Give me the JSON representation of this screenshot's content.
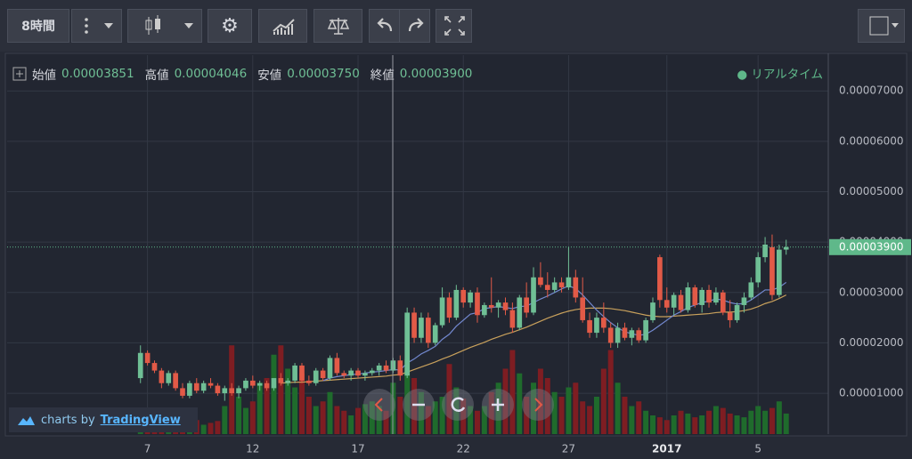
{
  "toolbar": {
    "interval": "8時間"
  },
  "legend": {
    "items": [
      {
        "label": "始値",
        "value": "0.00003851"
      },
      {
        "label": "高値",
        "value": "0.00004046"
      },
      {
        "label": "安値",
        "value": "0.00003750"
      },
      {
        "label": "終値",
        "value": "0.00003900"
      }
    ],
    "status": "リアルタイム"
  },
  "watermark": {
    "prefix": "charts by",
    "brand": "TradingView"
  },
  "chart_data": {
    "type": "candlestick",
    "up_color": "#6fbf95",
    "down_color": "#e25a47",
    "volume_up_color": "#1f6b2c",
    "volume_down_color": "#7e1d22",
    "ylim": [
      1.89e-06,
      7.71e-05
    ],
    "yticks": [
      {
        "value": 1e-05,
        "label": "0.00001000"
      },
      {
        "value": 2e-05,
        "label": "0.00002000"
      },
      {
        "value": 3e-05,
        "label": "0.00003000"
      },
      {
        "value": 4e-05,
        "label": "0.00004000"
      },
      {
        "value": 5e-05,
        "label": "0.00005000"
      },
      {
        "value": 6e-05,
        "label": "0.00006000"
      },
      {
        "value": 7e-05,
        "label": "0.00007000"
      }
    ],
    "xlim": [
      -19,
      98
    ],
    "xticks": [
      {
        "value": 1,
        "label": "7"
      },
      {
        "value": 16,
        "label": "12"
      },
      {
        "value": 31,
        "label": "17"
      },
      {
        "value": 46,
        "label": "22"
      },
      {
        "value": 61,
        "label": "27"
      },
      {
        "value": 75,
        "label": "2017"
      },
      {
        "value": 88,
        "label": "5"
      }
    ],
    "grid": true,
    "last_price": {
      "value": 3.9e-05,
      "label": "0.00003900",
      "color": "#5fb88a"
    },
    "open": [
      1.3e-05,
      1.8e-05,
      1.6e-05,
      1.45e-05,
      1.2e-05,
      1.4e-05,
      1.1e-05,
      9.5e-06,
      1.2e-05,
      1.05e-05,
      1.2e-05,
      1.15e-05,
      1e-05,
      1.1e-05,
      1e-05,
      1.1e-05,
      1.25e-05,
      1.15e-05,
      1.2e-05,
      1.1e-05,
      1.3e-05,
      1.2e-05,
      1.25e-05,
      1.55e-05,
      1.25e-05,
      1.2e-05,
      1.45e-05,
      1.3e-05,
      1.7e-05,
      1.4e-05,
      1.35e-05,
      1.45e-05,
      1.35e-05,
      1.4e-05,
      1.45e-05,
      1.55e-05,
      1.45e-05,
      1.65e-05,
      1.35e-05,
      2.6e-05,
      2.1e-05,
      2.5e-05,
      2e-05,
      2.35e-05,
      2.9e-05,
      2.5e-05,
      3.05e-05,
      2.8e-05,
      3e-05,
      2.55e-05,
      2.75e-05,
      2.7e-05,
      2.8e-05,
      2.65e-05,
      2.3e-05,
      2.9e-05,
      2.6e-05,
      3.3e-05,
      3.15e-05,
      3.05e-05,
      3.2e-05,
      3.1e-05,
      3.3e-05,
      2.9e-05,
      2.45e-05,
      2.2e-05,
      2.5e-05,
      2.3e-05,
      2e-05,
      2.3e-05,
      2.1e-05,
      2.25e-05,
      2.05e-05,
      2.45e-05,
      3.7e-05,
      2.85e-05,
      2.7e-05,
      2.95e-05,
      2.65e-05,
      3.1e-05,
      2.75e-05,
      3.05e-05,
      2.8e-05,
      3e-05,
      2.6e-05,
      2.45e-05,
      2.75e-05,
      2.9e-05,
      3.2e-05,
      3.7e-05,
      3.9e-05,
      2.95e-05,
      3.851e-05
    ],
    "high": [
      1.95e-05,
      1.85e-05,
      1.65e-05,
      1.5e-05,
      1.45e-05,
      1.45e-05,
      1.2e-05,
      1.25e-05,
      1.3e-05,
      1.25e-05,
      1.3e-05,
      1.2e-05,
      1.15e-05,
      1.2e-05,
      1.15e-05,
      1.3e-05,
      1.35e-05,
      1.25e-05,
      1.25e-05,
      1.3e-05,
      1.4e-05,
      1.3e-05,
      1.6e-05,
      1.6e-05,
      1.35e-05,
      1.5e-05,
      1.5e-05,
      1.75e-05,
      1.8e-05,
      1.45e-05,
      1.5e-05,
      1.5e-05,
      1.45e-05,
      1.5e-05,
      1.6e-05,
      1.65e-05,
      1.7e-05,
      1.75e-05,
      2.7e-05,
      2.7e-05,
      2.6e-05,
      2.6e-05,
      2.4e-05,
      3.1e-05,
      3e-05,
      3.15e-05,
      3.1e-05,
      3.05e-05,
      3.1e-05,
      2.8e-05,
      3.3e-05,
      2.85e-05,
      2.9e-05,
      2.8e-05,
      2.95e-05,
      3.2e-05,
      3.5e-05,
      3.6e-05,
      3.4e-05,
      3.3e-05,
      3.3e-05,
      3.9e-05,
      3.45e-05,
      3.3e-05,
      2.6e-05,
      2.6e-05,
      2.8e-05,
      2.4e-05,
      2.4e-05,
      2.4e-05,
      2.3e-05,
      2.3e-05,
      2.5e-05,
      2.9e-05,
      3.75e-05,
      3.1e-05,
      3e-05,
      3.05e-05,
      3.2e-05,
      3.15e-05,
      3.1e-05,
      3.15e-05,
      3.1e-05,
      3.05e-05,
      2.85e-05,
      2.8e-05,
      3e-05,
      3.3e-05,
      3.8e-05,
      4.1e-05,
      4.15e-05,
      3.95e-05,
      4.046e-05
    ],
    "low": [
      1.2e-05,
      1.55e-05,
      1.4e-05,
      1.1e-05,
      1.15e-05,
      1.05e-05,
      9e-06,
      9e-06,
      1e-05,
      1e-05,
      1.1e-05,
      9.5e-06,
      8.5e-06,
      9.5e-06,
      9e-06,
      1.05e-05,
      1.1e-05,
      1.05e-05,
      1.05e-05,
      1.05e-05,
      1.15e-05,
      1.15e-05,
      1.2e-05,
      1.2e-05,
      1.15e-05,
      1.15e-05,
      1.25e-05,
      1.25e-05,
      1.35e-05,
      1.3e-05,
      1.25e-05,
      1.3e-05,
      1.25e-05,
      1.35e-05,
      1.35e-05,
      1.4e-05,
      1.4e-05,
      1.25e-05,
      1.3e-05,
      2e-05,
      2e-05,
      1.9e-05,
      1.95e-05,
      2.3e-05,
      2.4e-05,
      2.45e-05,
      2.7e-05,
      2.7e-05,
      2.4e-05,
      2.5e-05,
      2.6e-05,
      2.5e-05,
      2.55e-05,
      2.2e-05,
      2.25e-05,
      2.5e-05,
      2.55e-05,
      3.1e-05,
      2.9e-05,
      3e-05,
      3e-05,
      3.05e-05,
      2.8e-05,
      2.4e-05,
      2.1e-05,
      2.1e-05,
      2.2e-05,
      1.9e-05,
      1.9e-05,
      2.05e-05,
      1.95e-05,
      2e-05,
      2e-05,
      2.4e-05,
      2.7e-05,
      2.6e-05,
      2.55e-05,
      2.6e-05,
      2.6e-05,
      2.7e-05,
      2.6e-05,
      2.7e-05,
      2.75e-05,
      2.55e-05,
      2.3e-05,
      2.4e-05,
      2.6e-05,
      2.85e-05,
      3.1e-05,
      3.6e-05,
      2.85e-05,
      2.9e-05,
      3.75e-05
    ],
    "close": [
      1.8e-05,
      1.6e-05,
      1.45e-05,
      1.2e-05,
      1.4e-05,
      1.1e-05,
      9.5e-06,
      1.2e-05,
      1.05e-05,
      1.2e-05,
      1.15e-05,
      1e-05,
      1.1e-05,
      1e-05,
      1.1e-05,
      1.25e-05,
      1.15e-05,
      1.2e-05,
      1.1e-05,
      1.3e-05,
      1.2e-05,
      1.25e-05,
      1.55e-05,
      1.25e-05,
      1.2e-05,
      1.45e-05,
      1.3e-05,
      1.7e-05,
      1.4e-05,
      1.35e-05,
      1.45e-05,
      1.35e-05,
      1.4e-05,
      1.45e-05,
      1.55e-05,
      1.45e-05,
      1.65e-05,
      1.35e-05,
      2.6e-05,
      2.1e-05,
      2.5e-05,
      2e-05,
      2.35e-05,
      2.9e-05,
      2.5e-05,
      3.05e-05,
      2.8e-05,
      3e-05,
      2.55e-05,
      2.75e-05,
      2.7e-05,
      2.8e-05,
      2.65e-05,
      2.3e-05,
      2.9e-05,
      2.6e-05,
      3.3e-05,
      3.15e-05,
      3.05e-05,
      3.2e-05,
      3.1e-05,
      3.3e-05,
      2.9e-05,
      2.45e-05,
      2.2e-05,
      2.5e-05,
      2.3e-05,
      2e-05,
      2.3e-05,
      2.1e-05,
      2.25e-05,
      2.05e-05,
      2.45e-05,
      2.8e-05,
      2.85e-05,
      2.7e-05,
      2.95e-05,
      2.65e-05,
      3.1e-05,
      2.75e-05,
      3.05e-05,
      2.8e-05,
      3e-05,
      2.6e-05,
      2.45e-05,
      2.75e-05,
      2.9e-05,
      3.2e-05,
      3.7e-05,
      3.95e-05,
      2.95e-05,
      3.85e-05,
      3.9e-05
    ],
    "volume_lim": [
      0,
      100
    ],
    "volume": [
      20,
      15,
      10,
      12,
      8,
      10,
      18,
      12,
      15,
      10,
      12,
      14,
      30,
      95,
      40,
      28,
      35,
      55,
      60,
      85,
      95,
      70,
      50,
      65,
      40,
      30,
      35,
      45,
      30,
      25,
      20,
      28,
      32,
      35,
      30,
      25,
      55,
      40,
      80,
      60,
      45,
      30,
      35,
      40,
      75,
      50,
      38,
      30,
      25,
      30,
      45,
      55,
      70,
      90,
      65,
      40,
      55,
      70,
      60,
      45,
      40,
      50,
      55,
      35,
      30,
      40,
      70,
      90,
      55,
      40,
      30,
      35,
      25,
      20,
      18,
      15,
      20,
      25,
      22,
      18,
      20,
      25,
      30,
      28,
      22,
      20,
      18,
      25,
      30,
      25,
      28,
      35,
      22
    ],
    "lines": [
      {
        "color": "#c9a15c",
        "values": [
          null,
          null,
          null,
          null,
          null,
          null,
          null,
          null,
          null,
          null,
          null,
          null,
          null,
          null,
          null,
          null,
          null,
          null,
          null,
          null,
          1.2e-05,
          1.21e-05,
          1.22e-05,
          1.22e-05,
          1.23e-05,
          1.24e-05,
          1.25e-05,
          1.26e-05,
          1.27e-05,
          1.28e-05,
          1.29e-05,
          1.3e-05,
          1.31e-05,
          1.32e-05,
          1.33e-05,
          1.34e-05,
          1.36e-05,
          1.37e-05,
          1.42e-05,
          1.47e-05,
          1.52e-05,
          1.57e-05,
          1.62e-05,
          1.68e-05,
          1.73e-05,
          1.79e-05,
          1.85e-05,
          1.91e-05,
          1.96e-05,
          2.01e-05,
          2.07e-05,
          2.12e-05,
          2.17e-05,
          2.21e-05,
          2.26e-05,
          2.31e-05,
          2.37e-05,
          2.43e-05,
          2.49e-05,
          2.54e-05,
          2.59e-05,
          2.63e-05,
          2.66e-05,
          2.68e-05,
          2.69e-05,
          2.69e-05,
          2.69e-05,
          2.68e-05,
          2.66e-05,
          2.64e-05,
          2.61e-05,
          2.58e-05,
          2.55e-05,
          2.53e-05,
          2.52e-05,
          2.52e-05,
          2.53e-05,
          2.54e-05,
          2.55e-05,
          2.56e-05,
          2.57e-05,
          2.58e-05,
          2.6e-05,
          2.61e-05,
          2.61e-05,
          2.62e-05,
          2.64e-05,
          2.67e-05,
          2.72e-05,
          2.78e-05,
          2.82e-05,
          2.88e-05,
          2.95e-05
        ]
      },
      {
        "color": "#7389d0",
        "values": [
          null,
          null,
          null,
          null,
          null,
          null,
          null,
          null,
          null,
          null,
          null,
          null,
          null,
          null,
          null,
          null,
          null,
          null,
          null,
          null,
          null,
          null,
          null,
          null,
          null,
          null,
          1.25e-05,
          1.3e-05,
          1.33e-05,
          1.35e-05,
          1.37e-05,
          1.38e-05,
          1.4e-05,
          1.42e-05,
          1.43e-05,
          1.45e-05,
          1.47e-05,
          1.46e-05,
          1.6e-05,
          1.68e-05,
          1.78e-05,
          1.85e-05,
          1.93e-05,
          2.07e-05,
          2.17e-05,
          2.33e-05,
          2.45e-05,
          2.57e-05,
          2.6e-05,
          2.68e-05,
          2.7e-05,
          2.72e-05,
          2.7e-05,
          2.68e-05,
          2.72e-05,
          2.73e-05,
          2.8e-05,
          2.87e-05,
          2.93e-05,
          3e-05,
          3.07e-05,
          3.13e-05,
          3.08e-05,
          2.95e-05,
          2.8e-05,
          2.65e-05,
          2.52e-05,
          2.4e-05,
          2.3e-05,
          2.22e-05,
          2.18e-05,
          2.15e-05,
          2.17e-05,
          2.25e-05,
          2.35e-05,
          2.45e-05,
          2.55e-05,
          2.62e-05,
          2.7e-05,
          2.75e-05,
          2.8e-05,
          2.83e-05,
          2.87e-05,
          2.85e-05,
          2.8e-05,
          2.77e-05,
          2.78e-05,
          2.85e-05,
          2.95e-05,
          3.05e-05,
          3.05e-05,
          3.1e-05,
          3.2e-05
        ]
      }
    ]
  }
}
